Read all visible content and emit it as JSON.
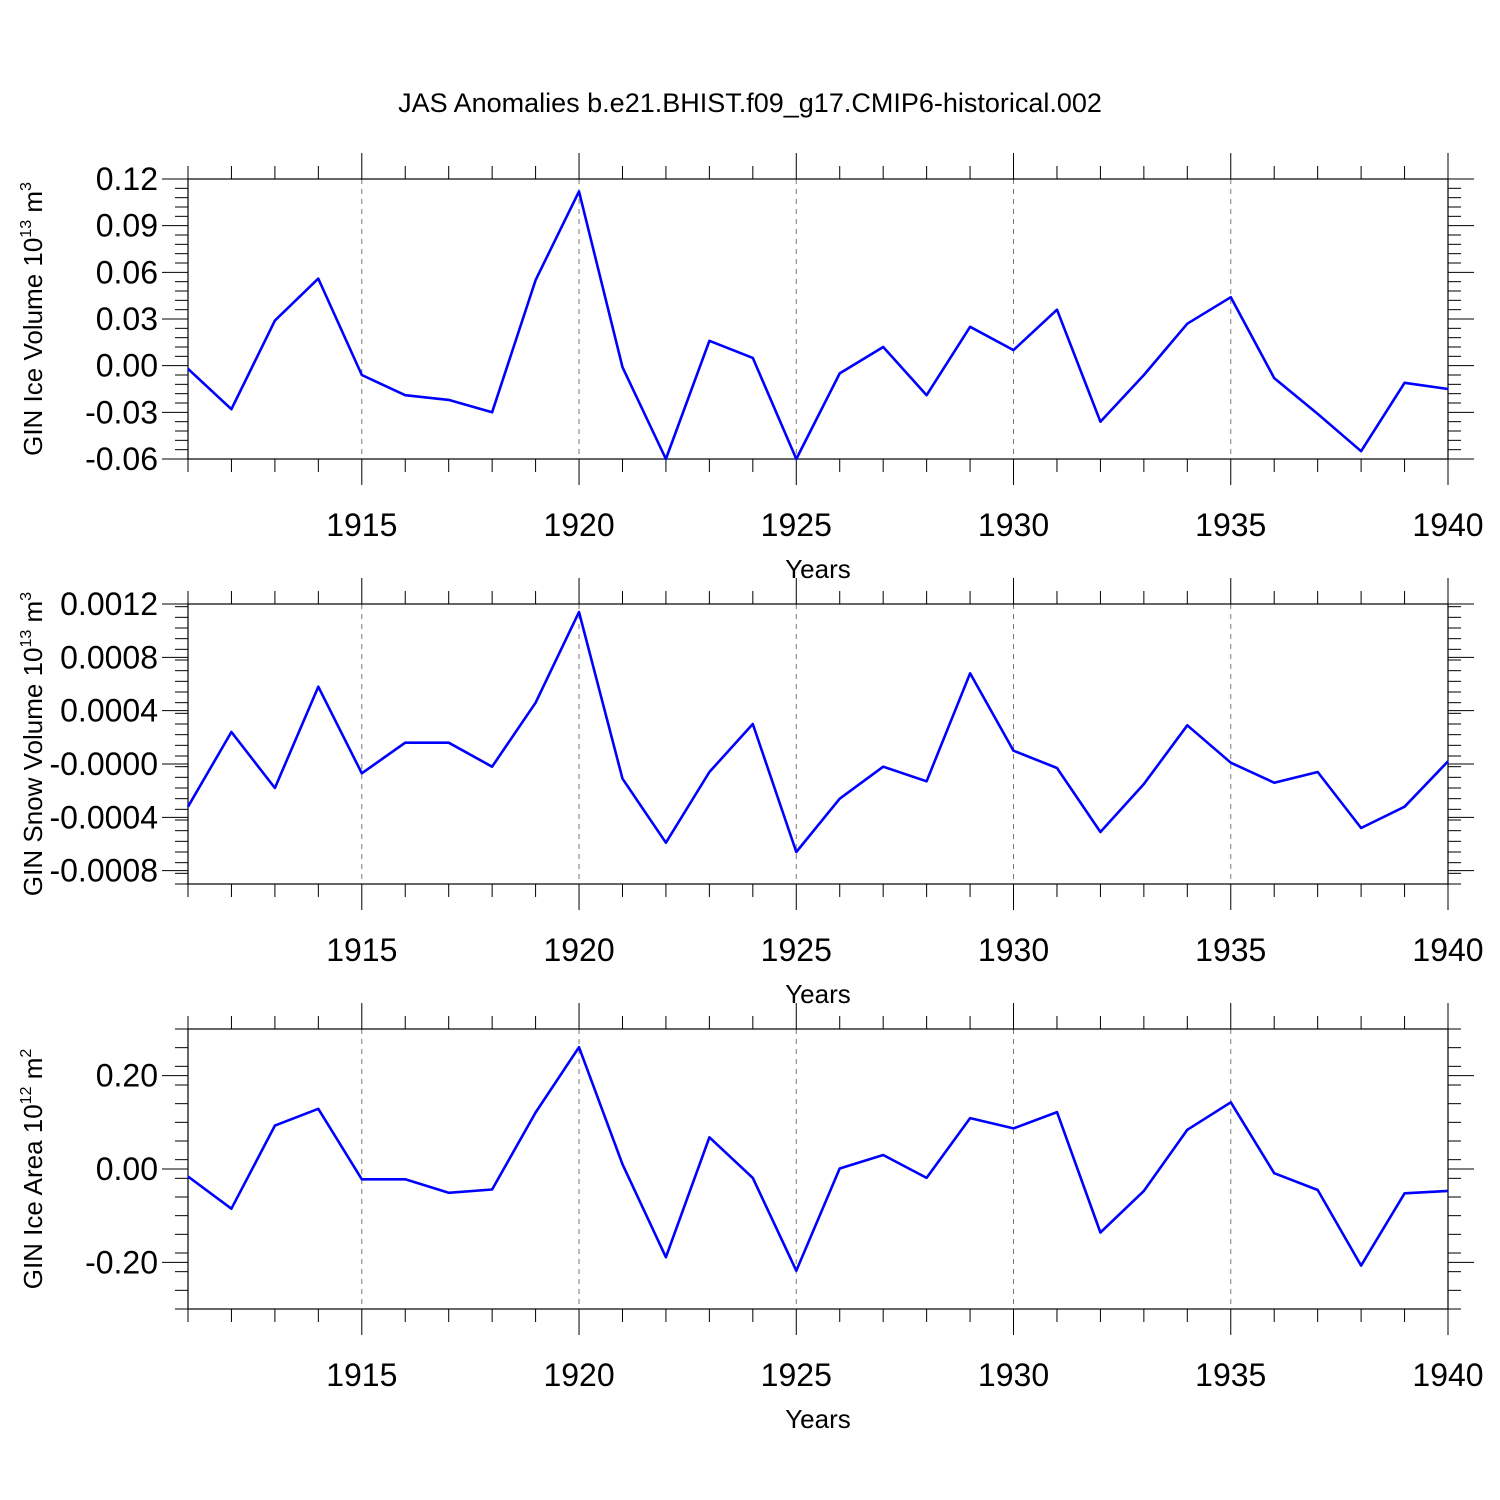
{
  "chart_data": {
    "type": "line",
    "title": "JAS Anomalies b.e21.BHIST.f09_g17.CMIP6-historical.002",
    "line_color": "#0000ff",
    "grid": "dashed vertical lines at major x ticks",
    "panels": [
      {
        "id": "ice-volume",
        "ylabel": "GIN Ice Volume 10",
        "ylabel_exp": "13",
        "ylabel_unit": "m",
        "ylabel_unit_exp": "3",
        "xlabel": "Years",
        "xlim": [
          1911,
          1940
        ],
        "ylim": [
          -0.06,
          0.12
        ],
        "xticks": [
          1915,
          1920,
          1925,
          1930,
          1935,
          1940
        ],
        "yticks": [
          0.12,
          0.09,
          0.06,
          0.03,
          0.0,
          -0.03,
          -0.06
        ],
        "ytick_labels": [
          "0.12",
          "0.09",
          "0.06",
          "0.03",
          "0.00",
          "-0.03",
          "-0.06"
        ],
        "x": [
          1911,
          1912,
          1913,
          1914,
          1915,
          1916,
          1917,
          1918,
          1919,
          1920,
          1921,
          1922,
          1923,
          1924,
          1925,
          1926,
          1927,
          1928,
          1929,
          1930,
          1931,
          1932,
          1933,
          1934,
          1935,
          1936,
          1937,
          1938,
          1939,
          1940
        ],
        "values": [
          -0.002,
          -0.028,
          0.029,
          0.056,
          -0.006,
          -0.019,
          -0.022,
          -0.03,
          0.055,
          0.112,
          -0.001,
          -0.06,
          0.016,
          0.005,
          -0.06,
          -0.005,
          0.012,
          -0.019,
          0.025,
          0.01,
          0.036,
          -0.036,
          -0.006,
          0.027,
          0.044,
          -0.008,
          -0.031,
          -0.055,
          -0.011,
          -0.015
        ]
      },
      {
        "id": "snow-volume",
        "ylabel": "GIN Snow Volume 10",
        "ylabel_exp": "13",
        "ylabel_unit": "m",
        "ylabel_unit_exp": "3",
        "xlabel": "Years",
        "xlim": [
          1911,
          1940
        ],
        "ylim": [
          -0.0009,
          0.0012
        ],
        "xticks": [
          1915,
          1920,
          1925,
          1930,
          1935,
          1940
        ],
        "yticks": [
          0.0012,
          0.0008,
          0.0004,
          0.0,
          -0.0004,
          -0.0008
        ],
        "ytick_labels": [
          "0.0012",
          "0.0008",
          "0.0004",
          "-0.0000",
          "-0.0004",
          "-0.0008"
        ],
        "x": [
          1911,
          1912,
          1913,
          1914,
          1915,
          1916,
          1917,
          1918,
          1919,
          1920,
          1921,
          1922,
          1923,
          1924,
          1925,
          1926,
          1927,
          1928,
          1929,
          1930,
          1931,
          1932,
          1933,
          1934,
          1935,
          1936,
          1937,
          1938,
          1939,
          1940
        ],
        "values": [
          -0.00032,
          0.00024,
          -0.00018,
          0.00058,
          -7e-05,
          0.00016,
          0.00016,
          -2e-05,
          0.00046,
          0.00114,
          -0.00011,
          -0.00059,
          -6e-05,
          0.0003,
          -0.00066,
          -0.00026,
          -2e-05,
          -0.00013,
          0.00068,
          0.0001,
          -3e-05,
          -0.00051,
          -0.00015,
          0.00029,
          1e-05,
          -0.00014,
          -6e-05,
          -0.00048,
          -0.00032,
          2e-05
        ]
      },
      {
        "id": "ice-area",
        "ylabel": "GIN Ice Area 10",
        "ylabel_exp": "12",
        "ylabel_unit": "m",
        "ylabel_unit_exp": "2",
        "xlabel": "Years",
        "xlim": [
          1911,
          1940
        ],
        "ylim": [
          -0.3,
          0.3
        ],
        "xticks": [
          1915,
          1920,
          1925,
          1930,
          1935,
          1940
        ],
        "yticks": [
          0.2,
          0.0,
          -0.2
        ],
        "ytick_labels": [
          "0.20",
          "0.00",
          "-0.20"
        ],
        "x": [
          1911,
          1912,
          1913,
          1914,
          1915,
          1916,
          1917,
          1918,
          1919,
          1920,
          1921,
          1922,
          1923,
          1924,
          1925,
          1926,
          1927,
          1928,
          1929,
          1930,
          1931,
          1932,
          1933,
          1934,
          1935,
          1936,
          1937,
          1938,
          1939,
          1940
        ],
        "values": [
          -0.016,
          -0.085,
          0.093,
          0.129,
          -0.022,
          -0.022,
          -0.051,
          -0.044,
          0.121,
          0.261,
          0.01,
          -0.189,
          0.068,
          -0.019,
          -0.218,
          0.001,
          0.03,
          -0.019,
          0.109,
          0.087,
          0.122,
          -0.136,
          -0.047,
          0.084,
          0.143,
          -0.009,
          -0.045,
          -0.207,
          -0.052,
          -0.047
        ]
      }
    ]
  }
}
